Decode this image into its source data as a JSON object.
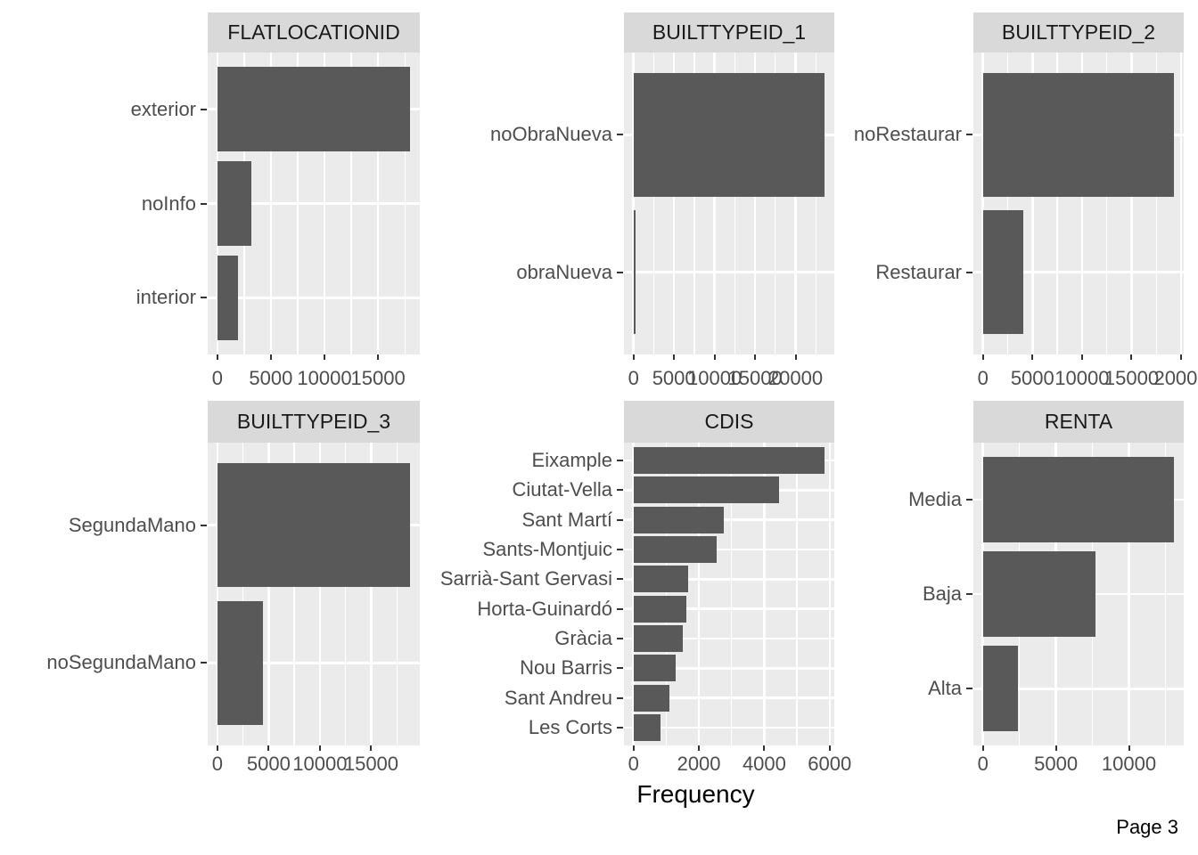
{
  "page": {
    "footer": "Page 3"
  },
  "style": {
    "background": "#FFFFFF",
    "bar_color": "#595959",
    "panel_bg": "#EBEBEB",
    "strip_bg": "#D9D9D9",
    "grid_color": "#FFFFFF",
    "axis_text_color": "#4D4D4D",
    "strip_text_color": "#1A1A1A",
    "tick_color": "#333333",
    "title_text_color": "#000000"
  },
  "chart_data": {
    "type": "bar",
    "orientation": "horizontal",
    "layout": "facet-grid-2x3",
    "grid": "on",
    "legend": "none",
    "xlabel": "Frequency",
    "panels": [
      {
        "title": "FLATLOCATIONID",
        "categories": [
          "exterior",
          "noInfo",
          "interior"
        ],
        "values": [
          18000,
          3200,
          1900
        ],
        "x_ticks": [
          0,
          5000,
          10000,
          15000
        ],
        "xlim": [
          -900,
          19800
        ]
      },
      {
        "title": "BUILTTYPEID_1",
        "categories": [
          "noObraNueva",
          "obraNueva"
        ],
        "values": [
          23600,
          300
        ],
        "x_ticks": [
          0,
          5000,
          10000,
          15000,
          20000
        ],
        "xlim": [
          -1180,
          25960
        ]
      },
      {
        "title": "BUILTTYPEID_2",
        "categories": [
          "noRestaurar",
          "Restaurar"
        ],
        "values": [
          19300,
          4050
        ],
        "x_ticks": [
          0,
          5000,
          10000,
          15000,
          20000
        ],
        "xlim": [
          -965,
          21230
        ]
      },
      {
        "title": "BUILTTYPEID_3",
        "categories": [
          "SegundaMano",
          "noSegundaMano"
        ],
        "values": [
          18800,
          4470
        ],
        "x_ticks": [
          0,
          5000,
          10000,
          15000
        ],
        "xlim": [
          -940,
          20680
        ]
      },
      {
        "title": "CDIS",
        "categories": [
          "Eixample",
          "Ciutat-Vella",
          "Sant Martí",
          "Sants-Montjuic",
          "Sarrià-Sant Gervasi",
          "Horta-Guinardó",
          "Gràcia",
          "Nou Barris",
          "Sant Andreu",
          "Les Corts"
        ],
        "values": [
          5850,
          4440,
          2750,
          2540,
          1670,
          1610,
          1500,
          1290,
          1110,
          815
        ],
        "x_ticks": [
          0,
          2000,
          4000,
          6000
        ],
        "xlim": [
          -292,
          6413
        ]
      },
      {
        "title": "RENTA",
        "categories": [
          "Media",
          "Baja",
          "Alta"
        ],
        "values": [
          13100,
          7700,
          2400
        ],
        "x_ticks": [
          0,
          5000,
          10000
        ],
        "xlim": [
          -655,
          14410
        ]
      }
    ]
  }
}
